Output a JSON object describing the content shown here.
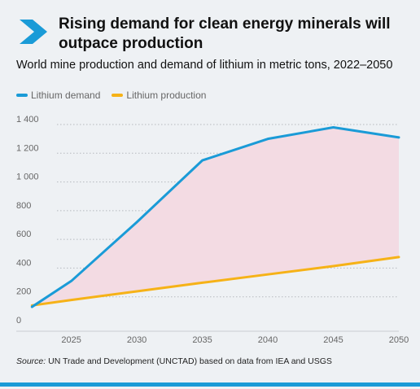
{
  "title": "Rising demand for clean energy minerals will outpace production",
  "subtitle": "World mine production and demand of lithium in metric tons, 2022–2050",
  "source_label": "Source:",
  "source_text": "UN Trade and Development (UNCTAD) based on data from IEA and USGS",
  "colors": {
    "accent": "#1a9bd7",
    "demand": "#1a9bd7",
    "production": "#f6b217",
    "gap_fill": "#f3dbe3"
  },
  "chart_data": {
    "type": "line",
    "x": [
      2022,
      2025,
      2030,
      2035,
      2040,
      2045,
      2050
    ],
    "series": [
      {
        "name": "Lithium demand",
        "values": [
          130,
          310,
          720,
          1150,
          1300,
          1380,
          1310
        ]
      },
      {
        "name": "Lithium production",
        "values": [
          140,
          178,
          238,
          298,
          356,
          414,
          477
        ]
      }
    ],
    "xticks": [
      2025,
      2030,
      2035,
      2040,
      2045,
      2050
    ],
    "yticks": [
      0,
      200,
      400,
      600,
      800,
      1000,
      1200,
      1400
    ],
    "ytick_labels": [
      "0",
      "200",
      "400",
      "600",
      "800",
      "1 000",
      "1 200",
      "1 400"
    ],
    "xlim": [
      2020.8,
      2050
    ],
    "ylim": [
      0,
      1400
    ],
    "legend_position": "top-left",
    "grid": "horizontal-dotted"
  }
}
